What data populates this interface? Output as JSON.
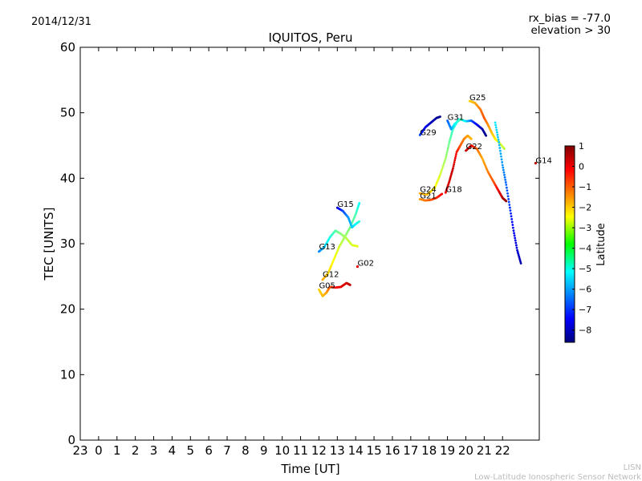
{
  "header": {
    "date": "2014/12/31",
    "rx_bias": "rx_bias = -77.0",
    "elevation": "elevation > 30"
  },
  "footer": {
    "org_short": "LISN",
    "org_long": "Low-Latitude Ionospheric Sensor Network"
  },
  "chart_data": {
    "type": "scatter",
    "title": "IQUITOS, Peru",
    "xlabel": "Time [UT]",
    "ylabel": "TEC [UNITS]",
    "xlim": [
      -1,
      24
    ],
    "ylim": [
      0,
      60
    ],
    "x_ticks": [
      -1,
      0,
      1,
      2,
      3,
      4,
      5,
      6,
      7,
      8,
      9,
      10,
      11,
      12,
      13,
      14,
      15,
      16,
      17,
      18,
      19,
      20,
      21,
      22
    ],
    "x_tick_labels": [
      "23",
      "0",
      "1",
      "2",
      "3",
      "4",
      "5",
      "6",
      "7",
      "8",
      "9",
      "10",
      "11",
      "12",
      "13",
      "14",
      "15",
      "16",
      "17",
      "18",
      "19",
      "20",
      "21",
      "22"
    ],
    "y_ticks": [
      0,
      10,
      20,
      30,
      40,
      50,
      60
    ],
    "y_tick_labels": [
      "0",
      "10",
      "20",
      "30",
      "40",
      "50",
      "60"
    ],
    "colorbar": {
      "label": "Latitude",
      "min": -8.6,
      "max": 1.0,
      "ticks": [
        1,
        0,
        -1,
        -2,
        -3,
        -4,
        -5,
        -6,
        -7,
        -8
      ],
      "tick_labels": [
        "1",
        "0",
        "−1",
        "−2",
        "−3",
        "−4",
        "−5",
        "−6",
        "−7",
        "−8"
      ]
    },
    "series": [
      {
        "name": "G05",
        "label_at": [
          12.0,
          23.1
        ],
        "points": [
          [
            12.0,
            23.0,
            -2.2
          ],
          [
            12.2,
            22.0,
            -2.0
          ],
          [
            12.4,
            22.5,
            -1.8
          ],
          [
            12.6,
            23.4,
            -1.0
          ],
          [
            12.9,
            23.3,
            -0.3
          ],
          [
            13.2,
            23.4,
            0.0
          ],
          [
            13.5,
            24.0,
            0.2
          ],
          [
            13.7,
            23.7,
            0.4
          ]
        ]
      },
      {
        "name": "G12",
        "label_at": [
          12.2,
          24.8
        ],
        "points": [
          [
            12.2,
            24.5,
            -1.8
          ],
          [
            12.5,
            25.5,
            -2.2
          ],
          [
            12.8,
            27.5,
            -2.6
          ],
          [
            13.1,
            29.5,
            -3.0
          ],
          [
            13.4,
            31.0,
            -3.5
          ],
          [
            13.7,
            32.5,
            -3.9
          ],
          [
            14.0,
            34.5,
            -4.3
          ],
          [
            14.2,
            36.2,
            -5.0
          ]
        ]
      },
      {
        "name": "G13",
        "label_at": [
          12.0,
          29.0
        ],
        "points": [
          [
            12.0,
            28.8,
            -6.2
          ],
          [
            12.3,
            29.5,
            -5.5
          ],
          [
            12.6,
            31.0,
            -4.7
          ],
          [
            12.9,
            32.0,
            -4.2
          ],
          [
            13.2,
            31.5,
            -3.7
          ],
          [
            13.5,
            30.8,
            -3.3
          ],
          [
            13.8,
            29.8,
            -3.0
          ],
          [
            14.1,
            29.6,
            -2.8
          ]
        ]
      },
      {
        "name": "G15",
        "label_at": [
          13.0,
          35.5
        ],
        "points": [
          [
            13.0,
            35.5,
            -7.8
          ],
          [
            13.3,
            35.0,
            -6.8
          ],
          [
            13.6,
            34.0,
            -6.0
          ],
          [
            13.8,
            32.5,
            -5.5
          ],
          [
            14.0,
            33.0,
            -5.0
          ],
          [
            14.2,
            33.4,
            -4.6
          ]
        ]
      },
      {
        "name": "G02",
        "label_at": [
          14.1,
          26.5
        ],
        "points": [
          [
            14.1,
            26.5,
            0.0
          ]
        ]
      },
      {
        "name": "G21",
        "label_at": [
          17.5,
          36.8
        ],
        "points": [
          [
            17.5,
            36.8,
            -1.6
          ],
          [
            17.8,
            36.6,
            -1.3
          ],
          [
            18.1,
            36.7,
            -1.0
          ],
          [
            18.4,
            37.0,
            -0.6
          ],
          [
            18.7,
            37.6,
            -0.2
          ]
        ]
      },
      {
        "name": "G24",
        "label_at": [
          17.5,
          37.8
        ],
        "points": [
          [
            17.5,
            37.7,
            -1.8
          ],
          [
            17.9,
            37.5,
            -2.0
          ],
          [
            18.3,
            38.5,
            -2.5
          ],
          [
            18.6,
            40.5,
            -3.0
          ],
          [
            18.9,
            43.0,
            -3.5
          ],
          [
            19.1,
            45.5,
            -4.0
          ],
          [
            19.3,
            47.5,
            -4.5
          ],
          [
            19.6,
            49.0,
            -5.0
          ]
        ]
      },
      {
        "name": "G18",
        "label_at": [
          18.9,
          37.8
        ],
        "points": [
          [
            18.9,
            37.8,
            0.0
          ],
          [
            19.1,
            39.5,
            0.2
          ],
          [
            19.3,
            41.5,
            0.3
          ],
          [
            19.5,
            44.0,
            -0.3
          ],
          [
            19.7,
            45.0,
            -1.0
          ],
          [
            19.9,
            46.0,
            -1.4
          ],
          [
            20.1,
            46.5,
            -1.7
          ],
          [
            20.3,
            46.0,
            -1.9
          ]
        ]
      },
      {
        "name": "G29",
        "label_at": [
          17.5,
          46.5
        ],
        "points": [
          [
            17.5,
            46.6,
            -6.8
          ],
          [
            17.8,
            47.8,
            -7.5
          ],
          [
            18.1,
            48.5,
            -8.0
          ],
          [
            18.4,
            49.2,
            -8.3
          ],
          [
            18.6,
            49.4,
            -8.5
          ]
        ]
      },
      {
        "name": "G31",
        "label_at": [
          19.0,
          48.8
        ],
        "points": [
          [
            19.0,
            48.8,
            -6.5
          ],
          [
            19.2,
            47.5,
            -6.0
          ],
          [
            19.4,
            48.3,
            -5.0
          ],
          [
            19.7,
            49.0,
            -4.3
          ],
          [
            20.0,
            48.7,
            -5.2
          ],
          [
            20.3,
            48.8,
            -6.5
          ],
          [
            20.6,
            48.2,
            -7.5
          ],
          [
            20.9,
            47.5,
            -8.2
          ],
          [
            21.1,
            46.5,
            -8.5
          ]
        ]
      },
      {
        "name": "G25",
        "label_at": [
          20.2,
          51.8
        ],
        "points": [
          [
            20.2,
            51.8,
            -2.2
          ],
          [
            20.5,
            51.5,
            -1.8
          ],
          [
            20.8,
            50.5,
            -1.3
          ],
          [
            21.0,
            49.2,
            -1.0
          ],
          [
            21.2,
            48.2,
            -1.5
          ],
          [
            21.4,
            47.0,
            -2.0
          ],
          [
            21.6,
            46.0,
            -2.4
          ],
          [
            21.8,
            45.5,
            -2.8
          ],
          [
            22.1,
            44.5,
            -3.2
          ]
        ]
      },
      {
        "name": "G22",
        "label_at": [
          20.0,
          44.3
        ],
        "points": [
          [
            20.0,
            44.2,
            0.3
          ],
          [
            20.3,
            45.0,
            0.0
          ],
          [
            20.6,
            44.5,
            -1.2
          ],
          [
            20.9,
            43.0,
            -1.8
          ],
          [
            21.2,
            41.0,
            -1.4
          ],
          [
            21.5,
            39.5,
            -1.0
          ],
          [
            21.8,
            38.0,
            0.0
          ],
          [
            22.0,
            37.0,
            0.5
          ],
          [
            22.2,
            36.5,
            0.8
          ]
        ]
      },
      {
        "name": "G14",
        "label_at": [
          23.8,
          42.2
        ],
        "points": [
          [
            23.8,
            42.3,
            0.5
          ]
        ]
      },
      {
        "name": "tail",
        "label_at": null,
        "points": [
          [
            21.6,
            48.5,
            -5.2
          ],
          [
            21.8,
            45.5,
            -5.6
          ],
          [
            22.0,
            42.0,
            -6.0
          ],
          [
            22.2,
            39.0,
            -6.5
          ],
          [
            22.4,
            35.5,
            -7.0
          ],
          [
            22.6,
            32.0,
            -7.5
          ],
          [
            22.8,
            29.0,
            -7.8
          ],
          [
            23.0,
            27.0,
            -8.2
          ]
        ]
      }
    ]
  }
}
